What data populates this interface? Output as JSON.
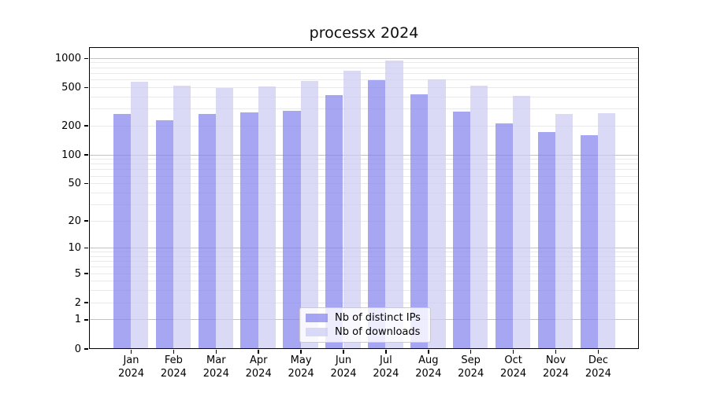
{
  "title": "processx 2024",
  "chart_data": {
    "type": "bar",
    "title": "processx 2024",
    "yscale": "log1p",
    "grid": "on",
    "legend_position": "lower center",
    "ylim": [
      0,
      1300
    ],
    "y_ticks": [
      0,
      1,
      2,
      5,
      10,
      20,
      50,
      100,
      200,
      500,
      1000
    ],
    "x_categories": [
      "Jan 2024",
      "Feb 2024",
      "Mar 2024",
      "Apr 2024",
      "May 2024",
      "Jun 2024",
      "Jul 2024",
      "Aug 2024",
      "Sep 2024",
      "Oct 2024",
      "Nov 2024",
      "Dec 2024"
    ],
    "x_tick_top": [
      "Jan",
      "Feb",
      "Mar",
      "Apr",
      "May",
      "Jun",
      "Jul",
      "Aug",
      "Sep",
      "Oct",
      "Nov",
      "Dec"
    ],
    "x_tick_bottom": "2024",
    "series": [
      {
        "name": "Nb of distinct IPs",
        "color": "rgba(128,128,236,0.7)",
        "values": [
          265,
          225,
          264,
          274,
          286,
          413,
          585,
          420,
          279,
          211,
          171,
          159
        ]
      },
      {
        "name": "Nb of downloads",
        "color": "rgba(202,202,244,0.7)",
        "values": [
          570,
          521,
          486,
          505,
          583,
          737,
          935,
          596,
          514,
          405,
          265,
          268
        ]
      }
    ],
    "colors": {
      "grid_major": "#c3c3c3",
      "grid_minor": "#e9e9e9",
      "axis": "#000000"
    }
  }
}
